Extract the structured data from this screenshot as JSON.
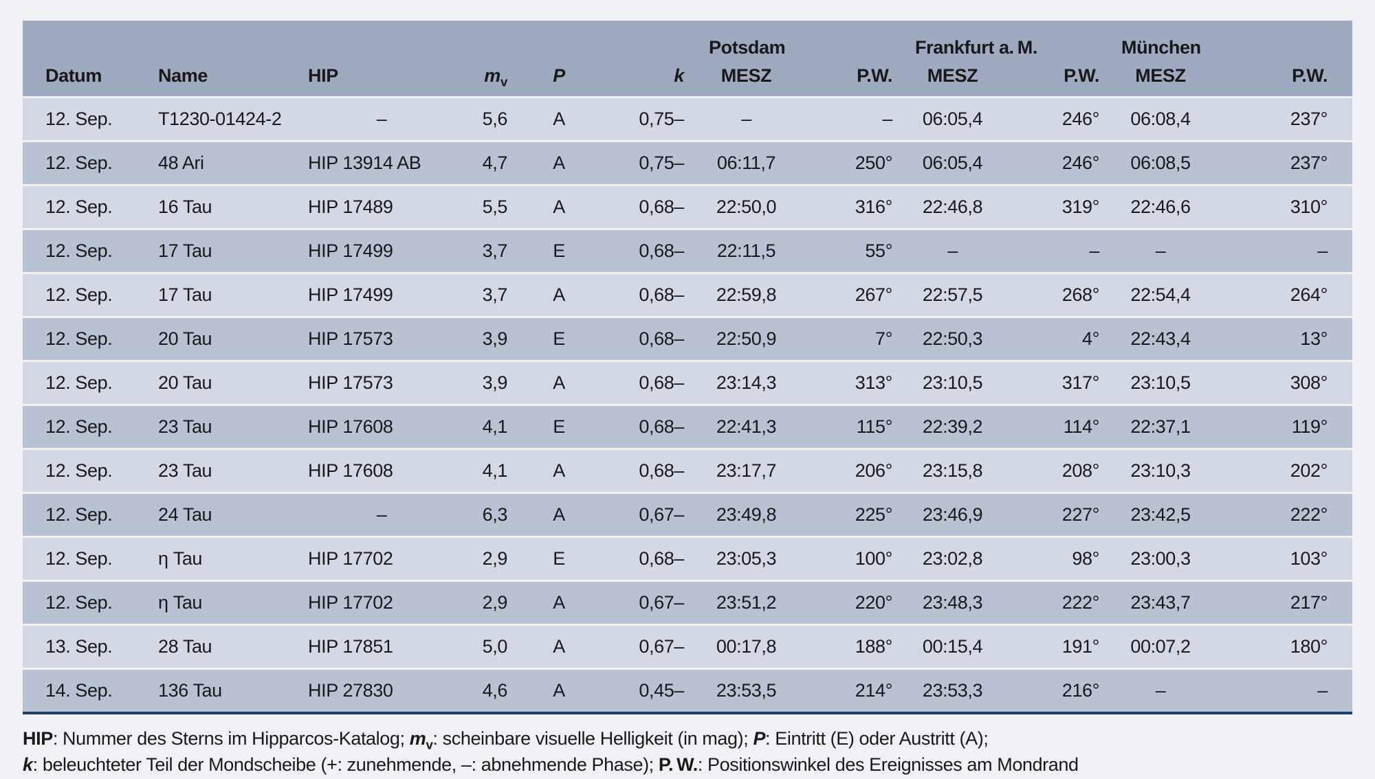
{
  "table": {
    "columns": [
      {
        "key": "datum",
        "label": "Datum"
      },
      {
        "key": "name",
        "label": "Name"
      },
      {
        "key": "hip",
        "label": "HIP"
      },
      {
        "key": "mv",
        "label": "m",
        "sub": "v",
        "italic": true
      },
      {
        "key": "p",
        "label": "P",
        "italic": true
      },
      {
        "key": "k",
        "label": "k",
        "italic": true
      },
      {
        "key": "potsdam-mesz",
        "label": "MESZ",
        "group": "Potsdam"
      },
      {
        "key": "potsdam-pw",
        "label": "P.W."
      },
      {
        "key": "frankfurt-mesz",
        "label": "MESZ",
        "group": "Frankfurt a. M."
      },
      {
        "key": "frankfurt-pw",
        "label": "P.W."
      },
      {
        "key": "muenchen-mesz",
        "label": "MESZ",
        "group": "München"
      },
      {
        "key": "muenchen-pw",
        "label": "P.W."
      }
    ],
    "rows": [
      [
        "12. Sep.",
        "T1230-01424-2",
        "–",
        "5,6",
        "A",
        "0,75–",
        "–",
        "–",
        "06:05,4",
        "246°",
        "06:08,4",
        "237°"
      ],
      [
        "12. Sep.",
        "48 Ari",
        "HIP 13914 AB",
        "4,7",
        "A",
        "0,75–",
        "06:11,7",
        "250°",
        "06:05,4",
        "246°",
        "06:08,5",
        "237°"
      ],
      [
        "12. Sep.",
        "16 Tau",
        "HIP 17489",
        "5,5",
        "A",
        "0,68–",
        "22:50,0",
        "316°",
        "22:46,8",
        "319°",
        "22:46,6",
        "310°"
      ],
      [
        "12. Sep.",
        "17 Tau",
        "HIP 17499",
        "3,7",
        "E",
        "0,68–",
        "22:11,5",
        "55°",
        "–",
        "–",
        "–",
        "–"
      ],
      [
        "12. Sep.",
        "17 Tau",
        "HIP 17499",
        "3,7",
        "A",
        "0,68–",
        "22:59,8",
        "267°",
        "22:57,5",
        "268°",
        "22:54,4",
        "264°"
      ],
      [
        "12. Sep.",
        "20 Tau",
        "HIP 17573",
        "3,9",
        "E",
        "0,68–",
        "22:50,9",
        "7°",
        "22:50,3",
        "4°",
        "22:43,4",
        "13°"
      ],
      [
        "12. Sep.",
        "20 Tau",
        "HIP 17573",
        "3,9",
        "A",
        "0,68–",
        "23:14,3",
        "313°",
        "23:10,5",
        "317°",
        "23:10,5",
        "308°"
      ],
      [
        "12. Sep.",
        "23 Tau",
        "HIP 17608",
        "4,1",
        "E",
        "0,68–",
        "22:41,3",
        "115°",
        "22:39,2",
        "114°",
        "22:37,1",
        "119°"
      ],
      [
        "12. Sep.",
        "23 Tau",
        "HIP 17608",
        "4,1",
        "A",
        "0,68–",
        "23:17,7",
        "206°",
        "23:15,8",
        "208°",
        "23:10,3",
        "202°"
      ],
      [
        "12. Sep.",
        "24 Tau",
        "–",
        "6,3",
        "A",
        "0,67–",
        "23:49,8",
        "225°",
        "23:46,9",
        "227°",
        "23:42,5",
        "222°"
      ],
      [
        "12. Sep.",
        "η Tau",
        "HIP 17702",
        "2,9",
        "E",
        "0,68–",
        "23:05,3",
        "100°",
        "23:02,8",
        "98°",
        "23:00,3",
        "103°"
      ],
      [
        "12. Sep.",
        "η Tau",
        "HIP 17702",
        "2,9",
        "A",
        "0,67–",
        "23:51,2",
        "220°",
        "23:48,3",
        "222°",
        "23:43,7",
        "217°"
      ],
      [
        "13. Sep.",
        "28 Tau",
        "HIP 17851",
        "5,0",
        "A",
        "0,67–",
        "00:17,8",
        "188°",
        "00:15,4",
        "191°",
        "00:07,2",
        "180°"
      ],
      [
        "14. Sep.",
        "136 Tau",
        "HIP 27830",
        "4,6",
        "A",
        "0,45–",
        "23:53,5",
        "214°",
        "23:53,3",
        "216°",
        "–",
        "–"
      ]
    ],
    "colors": {
      "header_bg": "#9daac0",
      "row_light": "#d3d9e4",
      "row_dark": "#b9c2d2",
      "page_bg": "#eff1f4",
      "bottom_rule": "#1f3e63",
      "text": "#191919"
    }
  },
  "footnotes": [
    {
      "segments": [
        {
          "text": "HIP",
          "style": "b"
        },
        {
          "text": ": Nummer des Sterns im Hipparcos-Katalog; ",
          "style": "plain"
        },
        {
          "text": "m",
          "style": "bi"
        },
        {
          "text": "v",
          "style": "bsub"
        },
        {
          "text": ": scheinbare visuelle Helligkeit (in mag); ",
          "style": "plain"
        },
        {
          "text": "P",
          "style": "bi"
        },
        {
          "text": ": Eintritt (E) oder Austritt (A);",
          "style": "plain"
        }
      ]
    },
    {
      "segments": [
        {
          "text": "k",
          "style": "bi"
        },
        {
          "text": ": beleuchteter Teil der Mondscheibe (+: zunehmende, –: abnehmende Phase); ",
          "style": "plain"
        },
        {
          "text": "P. W.",
          "style": "b"
        },
        {
          "text": ": Positionswinkel des Ereignisses am Mondrand",
          "style": "plain"
        }
      ]
    }
  ]
}
